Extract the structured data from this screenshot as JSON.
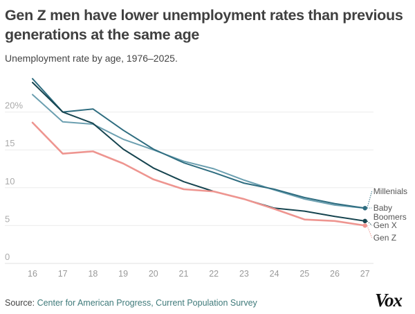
{
  "title": "Gen Z men have lower unemployment rates than previous generations at the same age",
  "subtitle": "Unemployment rate by age, 1976–2025.",
  "source": {
    "label": "Source:",
    "text": "Center for American Progress, Current Population Survey"
  },
  "logo": "Vox",
  "chart_data": {
    "type": "line",
    "title": "Gen Z men have lower unemployment rates than previous generations at the same age",
    "subtitle": "Unemployment rate by age, 1976–2025.",
    "xlabel": "",
    "ylabel": "",
    "x": [
      16,
      17,
      18,
      19,
      20,
      21,
      22,
      23,
      24,
      25,
      26,
      27
    ],
    "ylim": [
      0,
      25
    ],
    "yticks": [
      0,
      5,
      10,
      15,
      20
    ],
    "ytick_labels": [
      "0",
      "5",
      "10",
      "15",
      "20%"
    ],
    "grid": true,
    "legend": "direct-labels-right",
    "series": [
      {
        "name": "Baby Boomers",
        "color": "#6b9fb0",
        "values": [
          22.3,
          18.7,
          18.4,
          16.4,
          15.0,
          13.5,
          12.5,
          11.0,
          9.7,
          8.5,
          7.7,
          7.3
        ]
      },
      {
        "name": "Millenials",
        "color": "#2f6d80",
        "values": [
          24.4,
          20.0,
          20.4,
          17.6,
          15.1,
          13.3,
          12.0,
          10.6,
          9.8,
          8.7,
          7.9,
          7.3
        ]
      },
      {
        "name": "Gen X",
        "color": "#16444f",
        "values": [
          23.9,
          20.0,
          18.5,
          15.1,
          12.6,
          10.8,
          9.5,
          8.5,
          7.3,
          6.9,
          6.2,
          5.6
        ]
      },
      {
        "name": "Gen Z",
        "color": "#ee9590",
        "values": [
          18.6,
          14.5,
          14.8,
          13.2,
          11.1,
          9.8,
          9.5,
          8.5,
          7.2,
          5.8,
          5.6,
          5.0
        ]
      }
    ],
    "end_labels": [
      "Millenials",
      "Baby Boomers",
      "Gen X",
      "Gen Z"
    ]
  }
}
